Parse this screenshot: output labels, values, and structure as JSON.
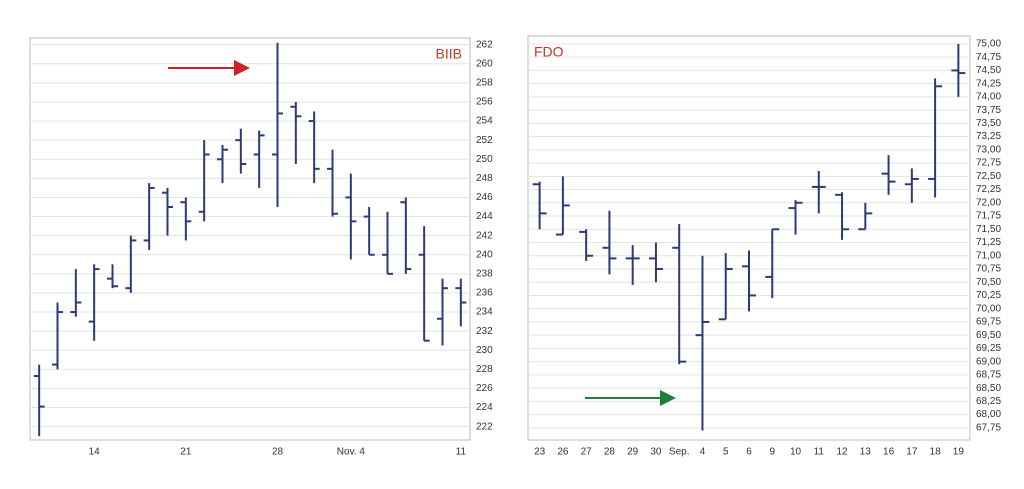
{
  "chart_data": [
    {
      "type": "ohlc",
      "title": "BIIB",
      "title_position": "top-right",
      "color": "#2e3a78",
      "grid": true,
      "categories": [
        null,
        null,
        null,
        "14",
        null,
        null,
        null,
        null,
        "21",
        null,
        null,
        null,
        null,
        "28",
        null,
        null,
        null,
        "Nov. 4",
        null,
        null,
        null,
        null,
        null,
        "11"
      ],
      "open": [
        227.3,
        228.5,
        234,
        233,
        237.5,
        236.5,
        241.5,
        246.5,
        245.5,
        244.5,
        250,
        252,
        250.5,
        250.5,
        255.5,
        254,
        249,
        246,
        244,
        240,
        245.5,
        240,
        233.3,
        236.5
      ],
      "high": [
        228.5,
        235,
        238.5,
        239,
        239,
        242,
        247.5,
        247,
        246,
        252,
        251.5,
        253.2,
        253,
        262.2,
        256,
        255,
        251,
        248.5,
        245,
        244.5,
        246,
        243,
        237.5,
        237.5
      ],
      "low": [
        221,
        228,
        233.5,
        231,
        236.5,
        236,
        240.5,
        242,
        241.5,
        243.5,
        247.5,
        248.5,
        247,
        245,
        249.5,
        247.5,
        244,
        239.5,
        240,
        238,
        238,
        231,
        230.5,
        232.5
      ],
      "close": [
        224.1,
        234,
        235,
        238.5,
        236.7,
        241.5,
        247,
        245,
        243.5,
        250.5,
        251,
        249.5,
        252.5,
        254.8,
        254.5,
        249,
        244.3,
        243.5,
        240,
        238,
        238.5,
        231,
        236.5,
        235
      ],
      "ylim": [
        220.6,
        262.7
      ],
      "yticks": [
        222,
        224,
        226,
        228,
        230,
        232,
        234,
        236,
        238,
        240,
        242,
        244,
        246,
        248,
        250,
        252,
        254,
        256,
        258,
        260,
        262
      ]
    },
    {
      "type": "ohlc",
      "title": "FDO",
      "title_position": "top-left",
      "color": "#2e3a78",
      "grid": true,
      "categories": [
        "23",
        "26",
        "27",
        "28",
        "29",
        "30",
        "Sep.",
        "4",
        "5",
        "6",
        "9",
        "10",
        "11",
        "12",
        "13",
        "16",
        "17",
        "18",
        "19"
      ],
      "open": [
        72.35,
        71.4,
        71.45,
        71.15,
        70.95,
        70.95,
        71.15,
        69.5,
        69.8,
        70.8,
        70.6,
        71.9,
        72.3,
        72.15,
        71.5,
        72.55,
        72.35,
        72.45,
        74.5
      ],
      "high": [
        72.4,
        72.5,
        71.5,
        71.85,
        71.2,
        71.25,
        71.6,
        71.0,
        71.05,
        71.1,
        71.5,
        72.05,
        72.6,
        72.2,
        72.0,
        72.9,
        72.65,
        74.35,
        75.0
      ],
      "low": [
        71.5,
        71.4,
        70.9,
        70.65,
        70.45,
        70.5,
        68.95,
        67.7,
        69.8,
        69.95,
        70.2,
        71.4,
        71.8,
        71.3,
        71.5,
        72.15,
        72.0,
        72.1,
        74.0
      ],
      "close": [
        71.8,
        71.95,
        71.0,
        70.95,
        70.95,
        70.75,
        69.0,
        69.75,
        70.75,
        70.25,
        71.5,
        72.0,
        72.3,
        71.5,
        71.8,
        72.4,
        72.45,
        74.2,
        74.45
      ],
      "ylim": [
        67.52,
        75.15
      ],
      "yticks": [
        {
          "value": 67.75,
          "label": "67,75"
        },
        {
          "value": 68,
          "label": "68,00"
        },
        {
          "value": 68.25,
          "label": "68,25"
        },
        {
          "value": 68.5,
          "label": "68,50"
        },
        {
          "value": 68.75,
          "label": "68,75"
        },
        {
          "value": 69,
          "label": "69,00"
        },
        {
          "value": 69.25,
          "label": "69,25"
        },
        {
          "value": 69.5,
          "label": "69,50"
        },
        {
          "value": 69.75,
          "label": "69,75"
        },
        {
          "value": 70,
          "label": "70,00"
        },
        {
          "value": 70.25,
          "label": "70,25"
        },
        {
          "value": 70.5,
          "label": "70,50"
        },
        {
          "value": 70.75,
          "label": "70,75"
        },
        {
          "value": 71,
          "label": "71,00"
        },
        {
          "value": 71.25,
          "label": "71,25"
        },
        {
          "value": 71.5,
          "label": "71,50"
        },
        {
          "value": 71.75,
          "label": "71,75"
        },
        {
          "value": 72,
          "label": "72,00"
        },
        {
          "value": 72.25,
          "label": "72,25"
        },
        {
          "value": 72.5,
          "label": "72,50"
        },
        {
          "value": 72.75,
          "label": "72,75"
        },
        {
          "value": 73,
          "label": "73,00"
        },
        {
          "value": 73.25,
          "label": "73,25"
        },
        {
          "value": 73.5,
          "label": "73,50"
        },
        {
          "value": 73.75,
          "label": "73,75"
        },
        {
          "value": 74,
          "label": "74,00"
        },
        {
          "value": 74.25,
          "label": "74,25"
        },
        {
          "value": 74.5,
          "label": "74,50"
        },
        {
          "value": 74.75,
          "label": "74,75"
        },
        {
          "value": 75,
          "label": "75,00"
        }
      ]
    }
  ]
}
